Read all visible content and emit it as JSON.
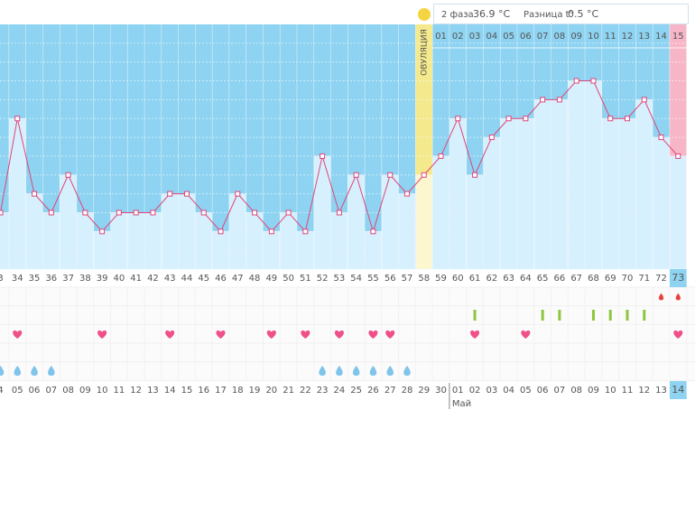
{
  "header": {
    "phase_label": "2 фаза",
    "phase_value": "36.9 °C",
    "diff_label": "Разница t°",
    "diff_value": "0.5 °C"
  },
  "chart_data": {
    "type": "line",
    "categories": [
      "3",
      "34",
      "35",
      "36",
      "37",
      "38",
      "39",
      "40",
      "41",
      "42",
      "43",
      "44",
      "45",
      "46",
      "47",
      "48",
      "49",
      "50",
      "51",
      "52",
      "53",
      "54",
      "55",
      "56",
      "57",
      "58",
      "59",
      "60",
      "61",
      "62",
      "63",
      "64",
      "65",
      "66",
      "67",
      "68",
      "69",
      "70",
      "71",
      "72",
      "73"
    ],
    "values": [
      36.4,
      36.9,
      36.5,
      36.4,
      36.6,
      36.4,
      36.3,
      36.4,
      36.4,
      36.4,
      36.5,
      36.5,
      36.4,
      36.3,
      36.5,
      36.4,
      36.3,
      36.4,
      36.3,
      36.7,
      36.4,
      36.6,
      36.3,
      36.6,
      36.5,
      36.6,
      36.7,
      36.9,
      36.6,
      36.8,
      36.9,
      36.9,
      37.0,
      37.0,
      37.1,
      37.1,
      36.9,
      36.9,
      37.0,
      36.8,
      36.7
    ],
    "color": "#e0457b",
    "ylim": [
      36.1,
      37.4
    ],
    "yticks": [
      36.2,
      36.3,
      36.4,
      36.5,
      36.6,
      36.7,
      36.8,
      36.9,
      37.0,
      37.1,
      37.2,
      37.3
    ],
    "grid": true,
    "ovulation_label": "ОВУЛЯЦИЯ",
    "phase2_days": [
      null,
      null,
      null,
      null,
      null,
      null,
      null,
      null,
      null,
      null,
      null,
      null,
      null,
      null,
      null,
      null,
      null,
      null,
      null,
      null,
      null,
      null,
      null,
      null,
      null,
      null,
      "01",
      "02",
      "03",
      "04",
      "05",
      "06",
      "07",
      "08",
      "09",
      "10",
      "11",
      "12",
      "13",
      "14",
      "15"
    ],
    "dates": [
      "4",
      "05",
      "06",
      "07",
      "08",
      "09",
      "10",
      "11",
      "12",
      "13",
      "14",
      "15",
      "16",
      "17",
      "18",
      "19",
      "20",
      "21",
      "22",
      "23",
      "24",
      "25",
      "26",
      "27",
      "28",
      "29",
      "30",
      "01",
      "02",
      "03",
      "04",
      "05",
      "06",
      "07",
      "08",
      "09",
      "10",
      "11",
      "12",
      "13",
      "14"
    ],
    "weekend": [
      false,
      false,
      false,
      false,
      false,
      true,
      true,
      false,
      false,
      false,
      false,
      false,
      true,
      true,
      false,
      false,
      false,
      false,
      false,
      true,
      true,
      false,
      false,
      false,
      false,
      false,
      true,
      true,
      false,
      false,
      false,
      false,
      false,
      true,
      true,
      false,
      false,
      false,
      false,
      false,
      false
    ],
    "month_labels": [
      null,
      null,
      null,
      null,
      null,
      null,
      null,
      null,
      null,
      null,
      null,
      null,
      null,
      null,
      null,
      null,
      null,
      null,
      null,
      null,
      null,
      null,
      null,
      null,
      null,
      null,
      null,
      "Май",
      null,
      null,
      null,
      null,
      null,
      null,
      null,
      null,
      null,
      null,
      null,
      null,
      null
    ],
    "highlight_last": true,
    "menstruation": [
      false,
      false,
      false,
      false,
      false,
      false,
      false,
      false,
      false,
      false,
      false,
      false,
      false,
      false,
      false,
      false,
      false,
      false,
      false,
      false,
      false,
      false,
      false,
      false,
      false,
      false,
      false,
      false,
      false,
      false,
      false,
      false,
      false,
      false,
      false,
      false,
      false,
      false,
      false,
      true,
      true
    ],
    "tests": [
      false,
      false,
      false,
      false,
      false,
      false,
      false,
      false,
      false,
      false,
      false,
      false,
      false,
      false,
      false,
      false,
      false,
      false,
      false,
      false,
      false,
      false,
      false,
      false,
      false,
      false,
      false,
      false,
      true,
      false,
      false,
      false,
      true,
      true,
      false,
      true,
      true,
      true,
      true,
      false,
      false
    ],
    "hearts": [
      false,
      true,
      false,
      false,
      false,
      false,
      true,
      false,
      false,
      false,
      true,
      false,
      false,
      true,
      false,
      false,
      true,
      false,
      true,
      false,
      true,
      false,
      true,
      true,
      false,
      false,
      false,
      false,
      true,
      false,
      false,
      true,
      false,
      false,
      false,
      false,
      false,
      false,
      false,
      false,
      true
    ],
    "discharge": [
      true,
      true,
      true,
      true,
      false,
      false,
      false,
      false,
      false,
      false,
      false,
      false,
      false,
      false,
      false,
      false,
      false,
      false,
      false,
      true,
      true,
      true,
      true,
      true,
      true,
      false,
      false,
      false,
      false,
      false,
      false,
      false,
      false,
      false,
      false,
      false,
      false,
      false,
      false,
      false,
      false
    ]
  }
}
